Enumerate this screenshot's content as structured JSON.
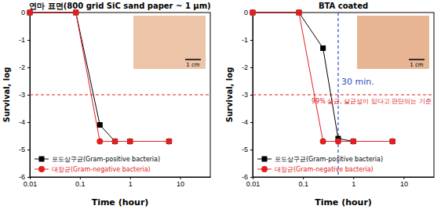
{
  "chart_data": [
    {
      "type": "line",
      "title": "연마 표면(800 grid SiC sand paper ~ 1 μm)",
      "x_label": "Time (hour)",
      "y_label": "Survival, log",
      "log": "x",
      "legend": "lower left",
      "x": [
        0.01,
        0.083,
        0.25,
        0.5,
        1,
        6
      ],
      "series": [
        {
          "name": "포도상구균(Gram-positive bacteria)",
          "color": "#000000",
          "marker": "square",
          "values": [
            0,
            0,
            -4.1,
            -4.7,
            -4.7,
            -4.7
          ]
        },
        {
          "name": "대장균(Gram-negative bacteria)",
          "color": "#e02020",
          "marker": "circle",
          "values": [
            0,
            0,
            -4.7,
            -4.7,
            -4.7,
            -4.7
          ]
        }
      ],
      "xlim": [
        0.01,
        40
      ],
      "xticks": [
        0.01,
        0.1,
        1,
        10
      ],
      "ylim": [
        -6,
        0
      ],
      "yticks": [
        0,
        -1,
        -2,
        -3,
        -4,
        -5,
        -6
      ],
      "reference_lines": [
        {
          "y": -3,
          "color": "#e02020",
          "line_style": "dashed"
        }
      ],
      "image_label": "1 cm"
    },
    {
      "type": "line",
      "title": "BTA coated",
      "x_label": "Time (hour)",
      "y_label": "Survival, log",
      "log": "x",
      "legend": "lower left",
      "x": [
        0.01,
        0.083,
        0.25,
        0.5,
        1,
        6
      ],
      "series": [
        {
          "name": "포도상구균(Gram-positive bacteria)",
          "color": "#000000",
          "marker": "square",
          "values": [
            0,
            0,
            -1.3,
            -4.6,
            -4.7,
            -4.7
          ]
        },
        {
          "name": "대장균(Gram-negative bacteria)",
          "color": "#e02020",
          "marker": "circle",
          "values": [
            0,
            0,
            -4.7,
            -4.7,
            -4.7,
            -4.7
          ]
        }
      ],
      "xlim": [
        0.01,
        40
      ],
      "xticks": [
        0.01,
        0.1,
        1,
        10
      ],
      "ylim": [
        -6,
        0
      ],
      "yticks": [
        0,
        -1,
        -2,
        -3,
        -4,
        -5,
        -6
      ],
      "reference_lines": [
        {
          "y": -3,
          "color": "#e02020",
          "line_style": "dashed",
          "label": "99% 살균, 살균성이 있다고 판단되는 기준"
        },
        {
          "x": 0.5,
          "color": "#3050c0",
          "line_style": "dashed",
          "label": "30 min."
        }
      ],
      "image_label": "1 cm"
    }
  ]
}
